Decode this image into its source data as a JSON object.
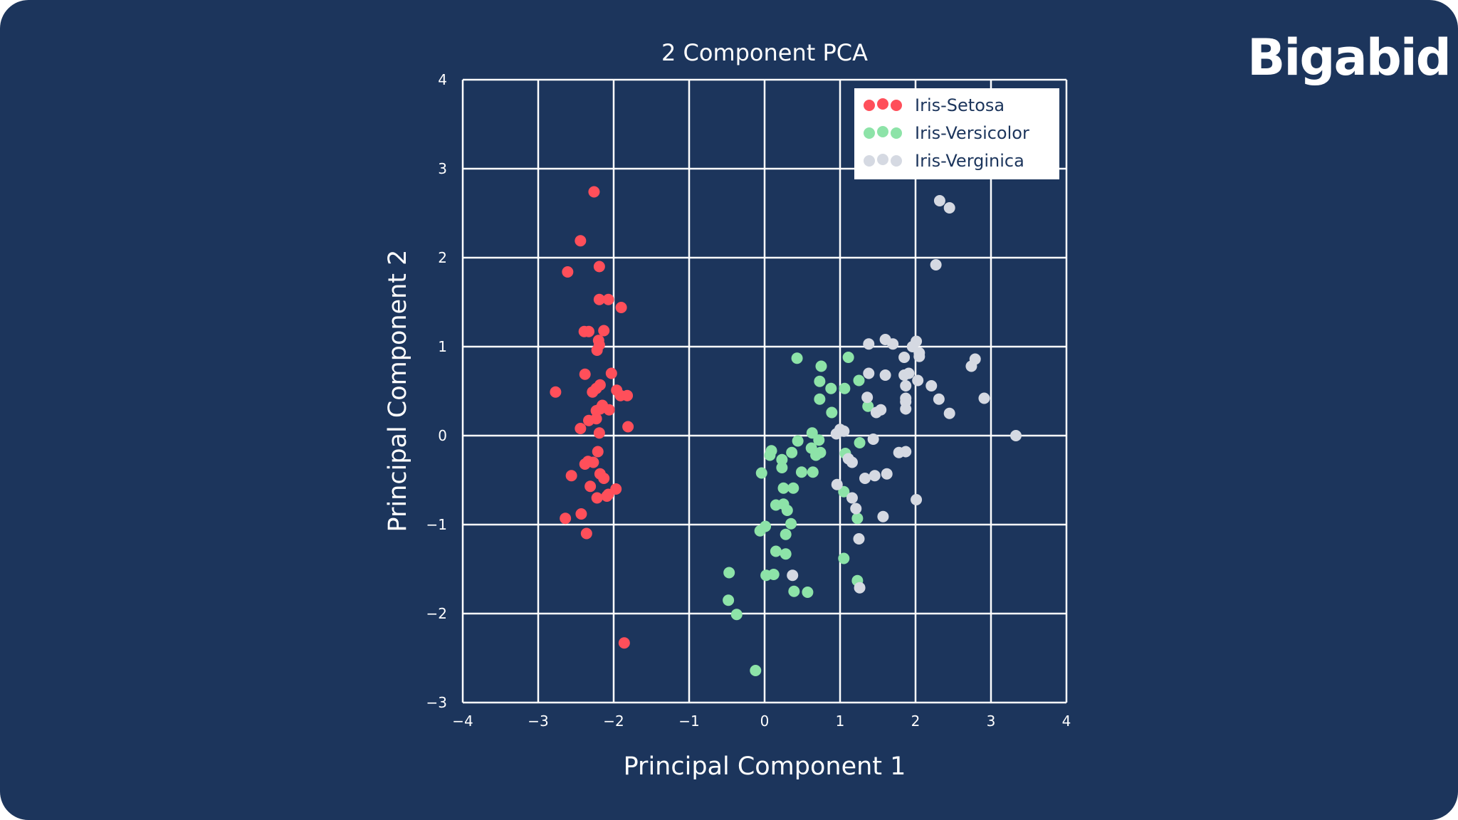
{
  "brand": {
    "logo_text": "Bigabid"
  },
  "chart_data": {
    "type": "scatter",
    "title": "2 Component PCA",
    "xlabel": "Principal Component 1",
    "ylabel": "Principal Component 2",
    "xlim": [
      -4,
      4
    ],
    "ylim": [
      -3,
      4
    ],
    "xticks": [
      "-4",
      "-3",
      "-2",
      "-1",
      "0",
      "1",
      "2",
      "3",
      "4"
    ],
    "yticks": [
      "-3",
      "-2",
      "-1",
      "0",
      "1",
      "2",
      "3",
      "4"
    ],
    "grid": true,
    "legend_position": "top-right",
    "background": "#1c355c",
    "series": [
      {
        "name": "Iris-Setosa",
        "color": "#ff4f5a",
        "points": [
          [
            -2.26,
            2.74
          ],
          [
            -2.44,
            2.19
          ],
          [
            -2.61,
            1.84
          ],
          [
            -2.19,
            1.9
          ],
          [
            -2.19,
            1.53
          ],
          [
            -2.07,
            1.53
          ],
          [
            -1.9,
            1.44
          ],
          [
            -2.39,
            1.17
          ],
          [
            -2.33,
            1.17
          ],
          [
            -2.13,
            1.18
          ],
          [
            -2.2,
            1.07
          ],
          [
            -2.19,
            1.02
          ],
          [
            -2.22,
            0.96
          ],
          [
            -2.38,
            0.69
          ],
          [
            -2.03,
            0.7
          ],
          [
            -2.77,
            0.49
          ],
          [
            -2.18,
            0.57
          ],
          [
            -2.23,
            0.53
          ],
          [
            -2.28,
            0.49
          ],
          [
            -1.96,
            0.51
          ],
          [
            -1.91,
            0.45
          ],
          [
            -1.82,
            0.45
          ],
          [
            -2.15,
            0.34
          ],
          [
            -2.18,
            0.3
          ],
          [
            -2.06,
            0.29
          ],
          [
            -2.23,
            0.28
          ],
          [
            -2.33,
            0.17
          ],
          [
            -2.23,
            0.19
          ],
          [
            -2.44,
            0.08
          ],
          [
            -2.19,
            0.03
          ],
          [
            -1.81,
            0.1
          ],
          [
            -2.21,
            -0.18
          ],
          [
            -2.38,
            -0.32
          ],
          [
            -2.34,
            -0.29
          ],
          [
            -2.27,
            -0.3
          ],
          [
            -2.56,
            -0.45
          ],
          [
            -2.18,
            -0.43
          ],
          [
            -2.13,
            -0.48
          ],
          [
            -2.31,
            -0.57
          ],
          [
            -1.97,
            -0.6
          ],
          [
            -2.22,
            -0.7
          ],
          [
            -2.09,
            -0.68
          ],
          [
            -2.07,
            -0.66
          ],
          [
            -2.43,
            -0.88
          ],
          [
            -2.64,
            -0.93
          ],
          [
            -2.36,
            -1.1
          ],
          [
            -1.86,
            -2.33
          ]
        ]
      },
      {
        "name": "Iris-Versicolor",
        "color": "#8de3a8",
        "points": [
          [
            0.43,
            0.87
          ],
          [
            0.75,
            0.78
          ],
          [
            1.11,
            0.88
          ],
          [
            0.73,
            0.61
          ],
          [
            0.73,
            0.41
          ],
          [
            0.88,
            0.53
          ],
          [
            1.06,
            0.53
          ],
          [
            1.25,
            0.62
          ],
          [
            0.89,
            0.26
          ],
          [
            1.37,
            0.33
          ],
          [
            0.63,
            0.03
          ],
          [
            0.44,
            -0.06
          ],
          [
            0.72,
            -0.05
          ],
          [
            0.68,
            -0.22
          ],
          [
            0.74,
            -0.19
          ],
          [
            0.62,
            -0.14
          ],
          [
            0.36,
            -0.19
          ],
          [
            0.09,
            -0.17
          ],
          [
            0.07,
            -0.22
          ],
          [
            0.23,
            -0.27
          ],
          [
            0.23,
            -0.36
          ],
          [
            0.49,
            -0.41
          ],
          [
            0.64,
            -0.41
          ],
          [
            -0.04,
            -0.42
          ],
          [
            1.26,
            -0.08
          ],
          [
            1.07,
            -0.2
          ],
          [
            0.25,
            -0.59
          ],
          [
            0.38,
            -0.59
          ],
          [
            0.15,
            -0.78
          ],
          [
            0.25,
            -0.77
          ],
          [
            0.3,
            -0.84
          ],
          [
            1.05,
            -0.63
          ],
          [
            1.23,
            -0.93
          ],
          [
            0.35,
            -0.99
          ],
          [
            0.01,
            -1.02
          ],
          [
            -0.06,
            -1.07
          ],
          [
            0.28,
            -1.11
          ],
          [
            0.15,
            -1.3
          ],
          [
            0.28,
            -1.33
          ],
          [
            1.05,
            -1.38
          ],
          [
            -0.47,
            -1.54
          ],
          [
            0.12,
            -1.56
          ],
          [
            0.02,
            -1.57
          ],
          [
            1.23,
            -1.63
          ],
          [
            0.39,
            -1.75
          ],
          [
            0.57,
            -1.76
          ],
          [
            -0.48,
            -1.85
          ],
          [
            -0.37,
            -2.01
          ],
          [
            -0.12,
            -2.64
          ]
        ]
      },
      {
        "name": "Iris-Verginica",
        "color": "#d5d9e2",
        "points": [
          [
            2.32,
            2.64
          ],
          [
            2.45,
            2.56
          ],
          [
            2.27,
            1.92
          ],
          [
            1.38,
            1.03
          ],
          [
            1.6,
            1.08
          ],
          [
            1.7,
            1.03
          ],
          [
            2.01,
            1.06
          ],
          [
            1.96,
            1.0
          ],
          [
            2.05,
            0.93
          ],
          [
            2.05,
            0.89
          ],
          [
            1.85,
            0.88
          ],
          [
            2.79,
            0.86
          ],
          [
            2.74,
            0.78
          ],
          [
            1.38,
            0.7
          ],
          [
            1.6,
            0.68
          ],
          [
            1.85,
            0.68
          ],
          [
            1.91,
            0.7
          ],
          [
            2.03,
            0.62
          ],
          [
            2.21,
            0.56
          ],
          [
            1.87,
            0.56
          ],
          [
            1.36,
            0.43
          ],
          [
            1.87,
            0.42
          ],
          [
            1.87,
            0.38
          ],
          [
            1.87,
            0.3
          ],
          [
            2.31,
            0.41
          ],
          [
            2.91,
            0.42
          ],
          [
            1.54,
            0.29
          ],
          [
            1.48,
            0.26
          ],
          [
            2.45,
            0.25
          ],
          [
            1.0,
            0.07
          ],
          [
            0.95,
            0.02
          ],
          [
            1.05,
            0.05
          ],
          [
            1.44,
            -0.04
          ],
          [
            3.33,
            0.0
          ],
          [
            1.78,
            -0.19
          ],
          [
            1.87,
            -0.18
          ],
          [
            1.11,
            -0.26
          ],
          [
            1.16,
            -0.3
          ],
          [
            1.33,
            -0.48
          ],
          [
            1.46,
            -0.45
          ],
          [
            1.62,
            -0.43
          ],
          [
            0.96,
            -0.55
          ],
          [
            1.16,
            -0.7
          ],
          [
            1.21,
            -0.82
          ],
          [
            2.01,
            -0.72
          ],
          [
            1.57,
            -0.91
          ],
          [
            1.25,
            -1.16
          ],
          [
            0.37,
            -1.57
          ],
          [
            1.26,
            -1.71
          ]
        ]
      }
    ]
  }
}
